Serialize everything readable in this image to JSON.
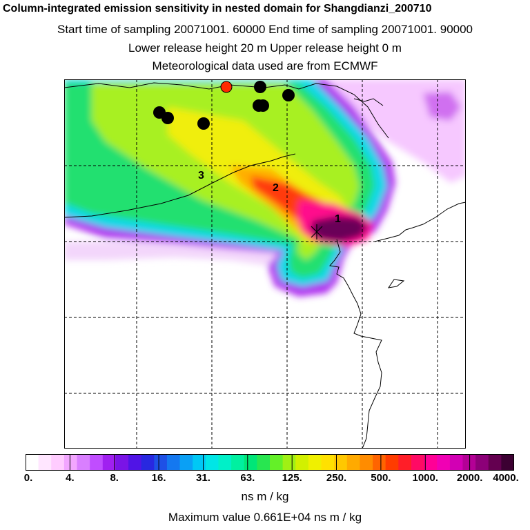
{
  "header": {
    "title": "Column-integrated emission sensitivity in nested domain for Shangdianzi_200710",
    "sampling": "Start time of sampling 20071001. 60000     End time of sampling 20071001. 90000",
    "release": "Lower release height   20 m          Upper release height    0 m",
    "met": "Meteorological data used are from ECMWF"
  },
  "map": {
    "labels": [
      "1",
      "2",
      "3"
    ],
    "colors": {
      "background": "#ffffff",
      "grid": "#000000",
      "coast": "#000000",
      "receptor_marker": "#ff2a00",
      "source_marker": "#000000"
    }
  },
  "colorbar": {
    "ticks": [
      "0.",
      "4.",
      "8.",
      "16.",
      "31.",
      "63.",
      "125.",
      "250.",
      "500.",
      "1000.",
      "2000.",
      "4000."
    ],
    "colors": [
      "#ffffff",
      "#ffe6ff",
      "#ffccff",
      "#f2a6ff",
      "#d97fff",
      "#c04dff",
      "#a020f0",
      "#7a14e6",
      "#5014e6",
      "#2828e0",
      "#1e50e6",
      "#1478f0",
      "#0aa0f5",
      "#00c8f5",
      "#00e6e6",
      "#00f0c8",
      "#00f0a0",
      "#00e678",
      "#28e650",
      "#64f028",
      "#a0f014",
      "#d2f000",
      "#f0f000",
      "#ffe100",
      "#ffc800",
      "#ffaa00",
      "#ff8c00",
      "#ff6400",
      "#ff3c00",
      "#ff1e28",
      "#ff0a64",
      "#ff0096",
      "#f000b4",
      "#d200b4",
      "#b40096",
      "#8c0078",
      "#640050",
      "#3c0032"
    ],
    "units": "ns m / kg"
  },
  "footer": {
    "max_value": "Maximum value  0.661E+04 ns m / kg"
  }
}
